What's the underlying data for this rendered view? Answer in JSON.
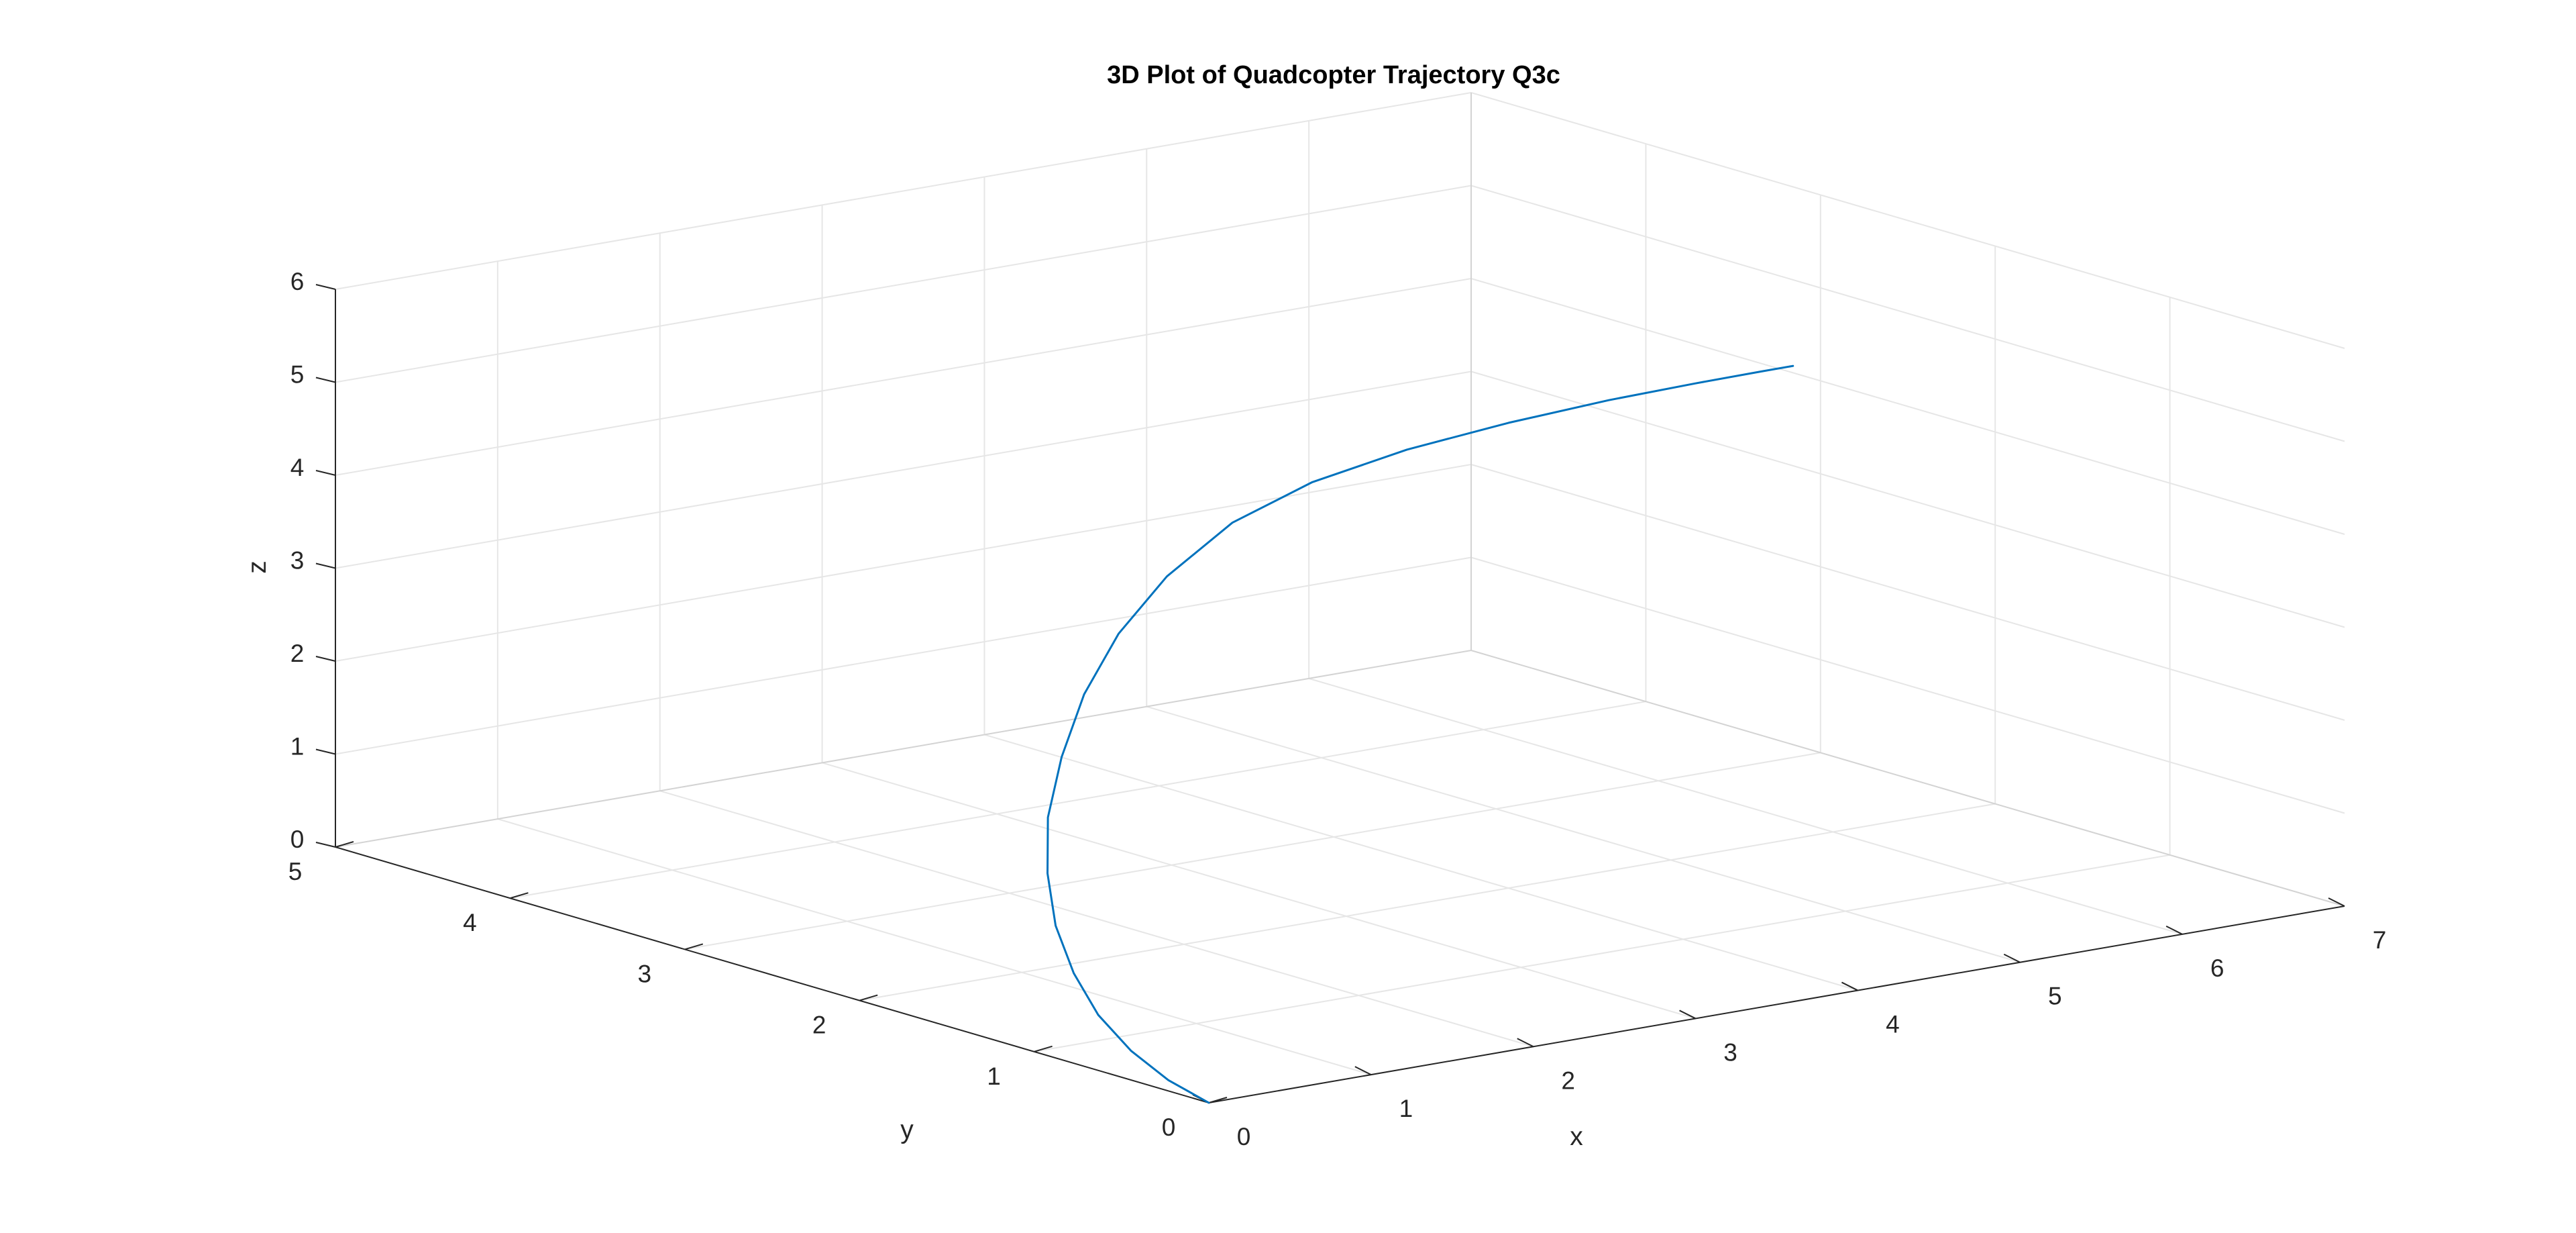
{
  "chart_data": {
    "type": "line",
    "dimensions": 3,
    "title": "3D Plot of Quadcopter Trajectory Q3c",
    "xlabel": "x",
    "ylabel": "y",
    "zlabel": "z",
    "xlim": [
      0,
      7
    ],
    "ylim": [
      0,
      5
    ],
    "zlim": [
      0,
      6
    ],
    "xticks": [
      0,
      1,
      2,
      3,
      4,
      5,
      6,
      7
    ],
    "yticks": [
      0,
      1,
      2,
      3,
      4,
      5
    ],
    "zticks": [
      0,
      1,
      2,
      3,
      4,
      5,
      6
    ],
    "grid": true,
    "series": [
      {
        "color": "#0072bd",
        "points": [
          {
            "x": 0.0,
            "y": 0.0,
            "z": 0.0
          },
          {
            "x": 0.02,
            "y": 0.25,
            "z": 0.1
          },
          {
            "x": 0.08,
            "y": 0.52,
            "z": 0.25
          },
          {
            "x": 0.18,
            "y": 0.8,
            "z": 0.45
          },
          {
            "x": 0.33,
            "y": 1.08,
            "z": 0.7
          },
          {
            "x": 0.52,
            "y": 1.36,
            "z": 1.0
          },
          {
            "x": 0.75,
            "y": 1.62,
            "z": 1.35
          },
          {
            "x": 1.0,
            "y": 1.85,
            "z": 1.75
          },
          {
            "x": 1.3,
            "y": 2.05,
            "z": 2.2
          },
          {
            "x": 1.6,
            "y": 2.2,
            "z": 2.7
          },
          {
            "x": 1.92,
            "y": 2.3,
            "z": 3.2
          },
          {
            "x": 2.25,
            "y": 2.33,
            "z": 3.7
          },
          {
            "x": 2.6,
            "y": 2.28,
            "z": 4.2
          },
          {
            "x": 2.95,
            "y": 2.15,
            "z": 4.6
          },
          {
            "x": 3.32,
            "y": 1.95,
            "z": 4.95
          },
          {
            "x": 3.7,
            "y": 1.72,
            "z": 5.25
          },
          {
            "x": 4.08,
            "y": 1.5,
            "z": 5.5
          },
          {
            "x": 4.45,
            "y": 1.35,
            "z": 5.65
          },
          {
            "x": 4.8,
            "y": 1.3,
            "z": 5.7
          },
          {
            "x": 5.0,
            "y": 1.3,
            "z": 5.7
          }
        ]
      }
    ]
  }
}
